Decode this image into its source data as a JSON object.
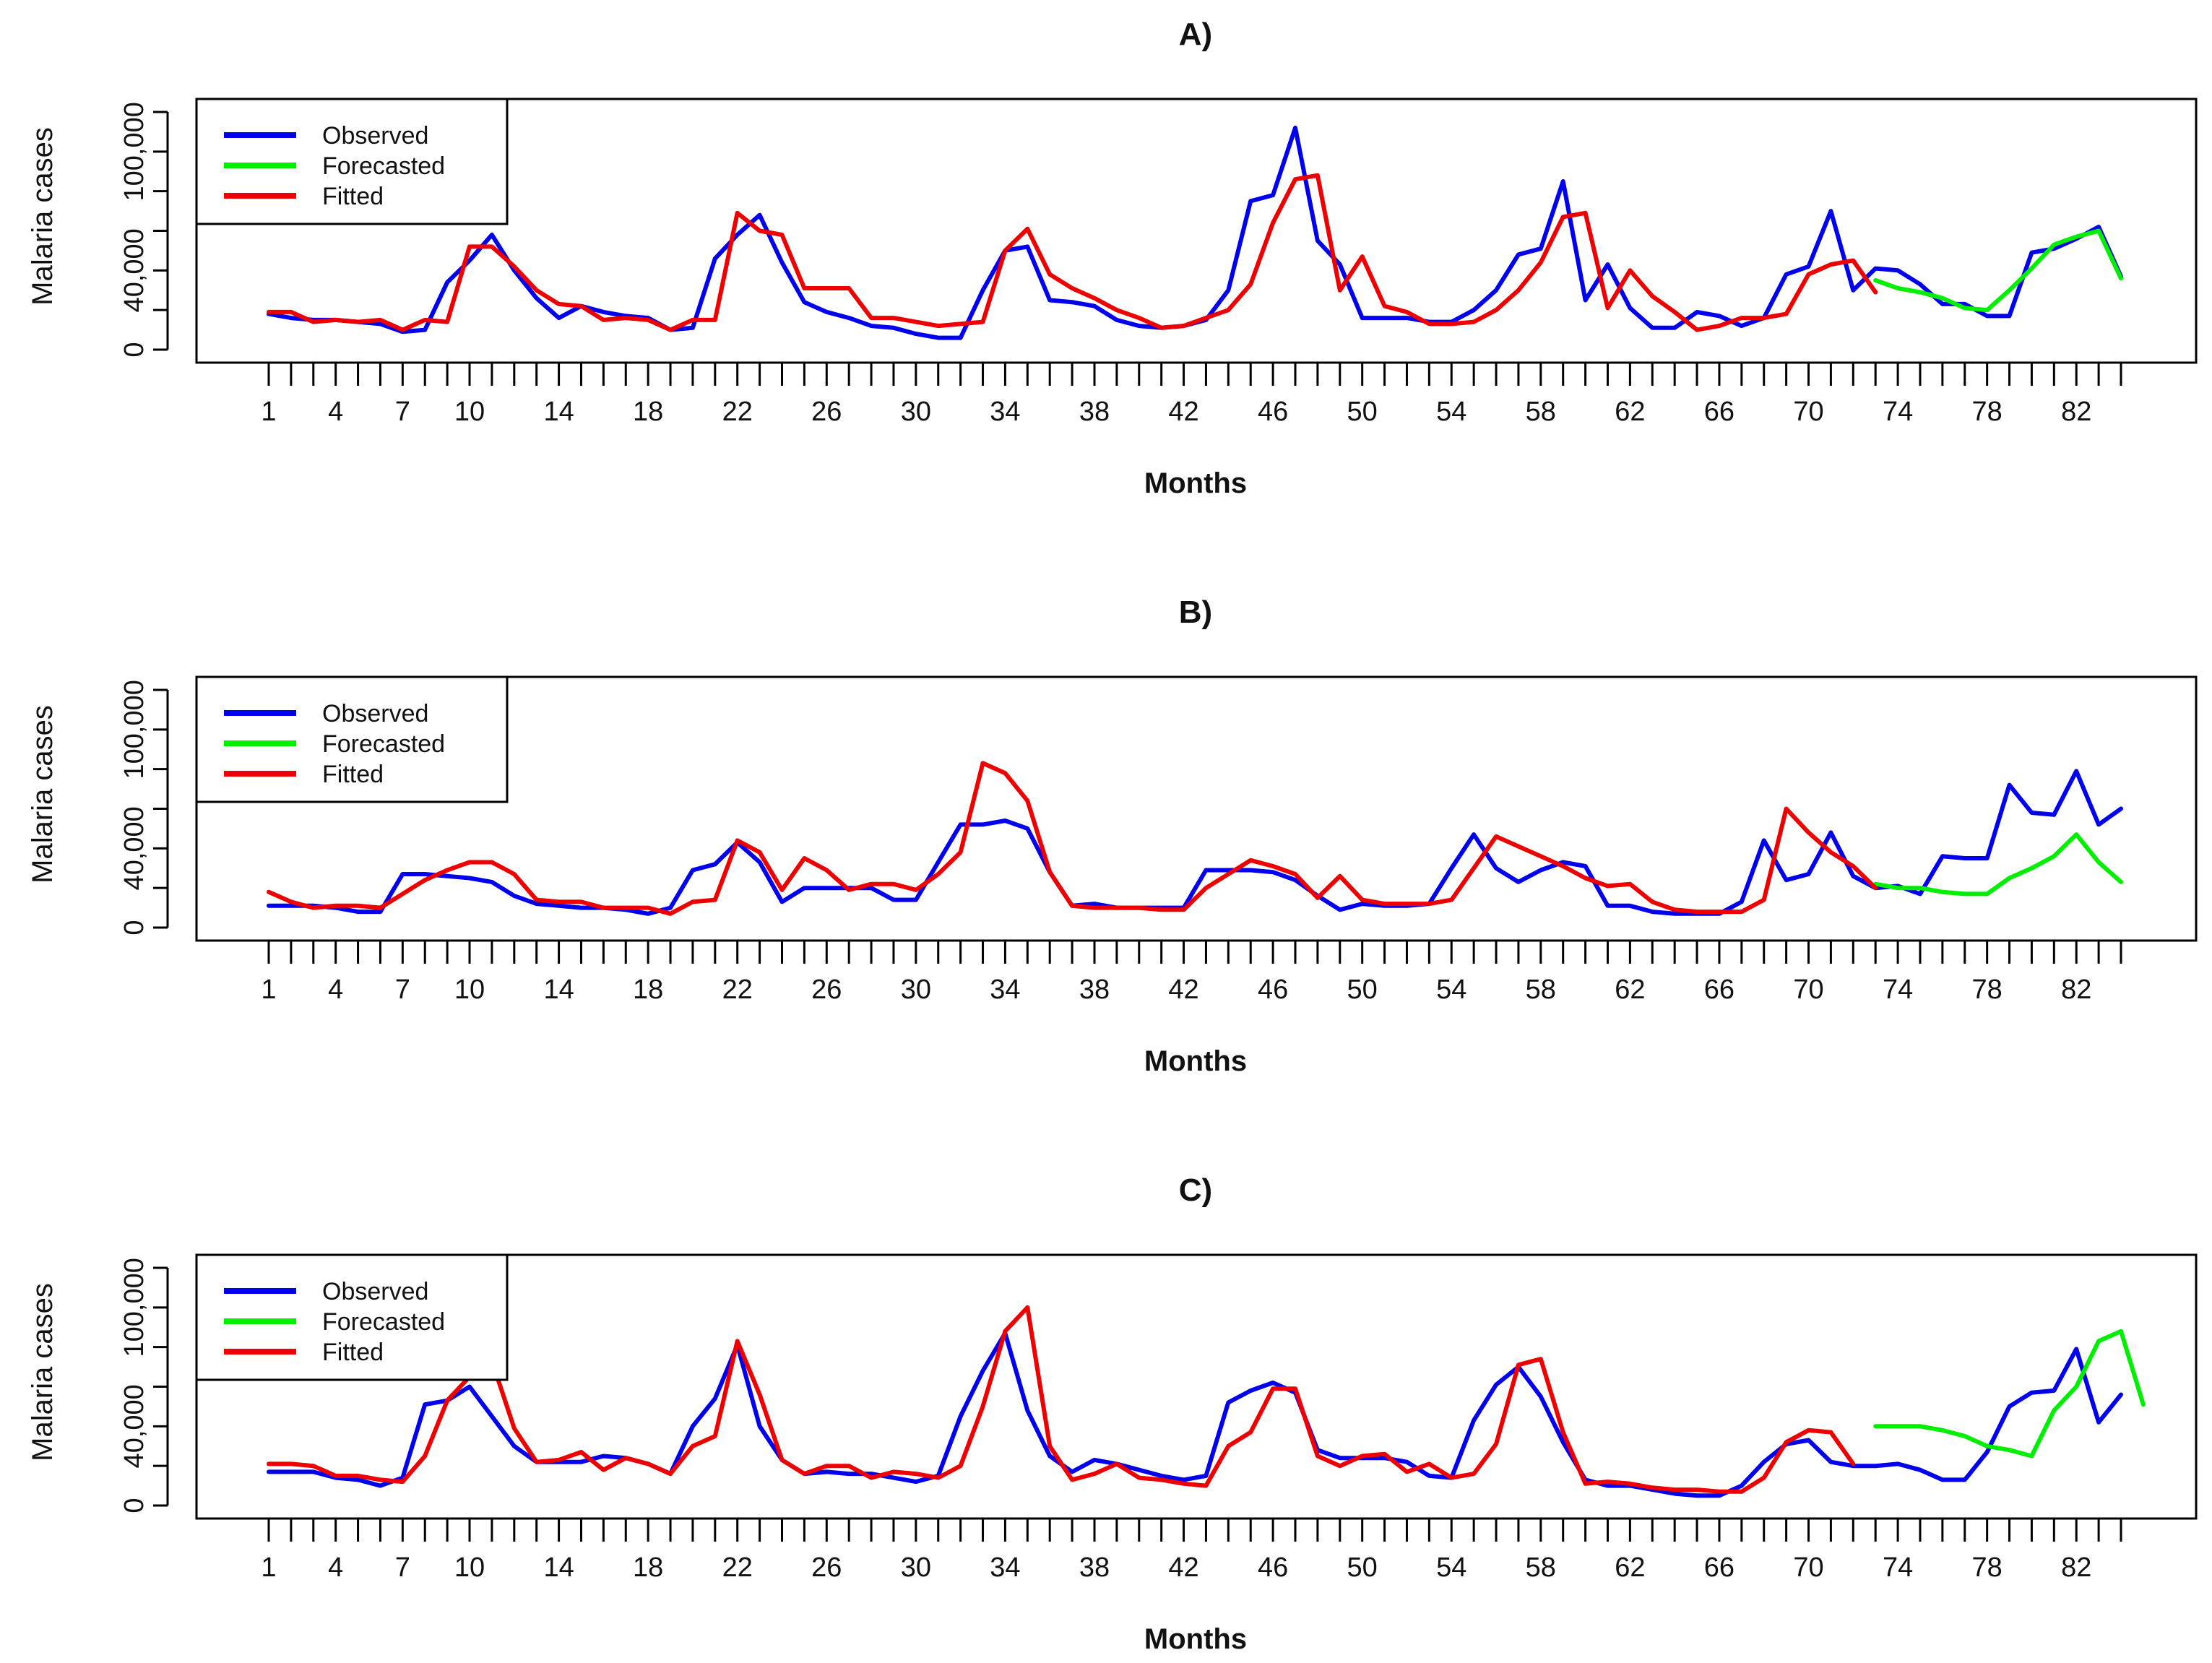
{
  "chart_data": [
    {
      "type": "line",
      "title": "A)",
      "xlabel": "Months",
      "ylabel": "Malaria cases",
      "xlim": [
        1,
        84
      ],
      "ylim": [
        0,
        120000
      ],
      "x_tick_labels": [
        "1",
        "4",
        "7",
        "10",
        "14",
        "18",
        "22",
        "26",
        "30",
        "34",
        "38",
        "42",
        "46",
        "50",
        "54",
        "58",
        "62",
        "66",
        "70",
        "74",
        "78",
        "82"
      ],
      "y_tick_labels": [
        "0",
        "40,000",
        "100,000"
      ],
      "legend": [
        "Observed",
        "Forecasted",
        "Fitted"
      ],
      "legend_position": "top-left",
      "series": [
        {
          "name": "Observed",
          "color": "#0000ee",
          "x_start": 1,
          "values": [
            18000,
            16000,
            15000,
            15000,
            14000,
            13000,
            9000,
            10000,
            34000,
            45000,
            58000,
            40000,
            26000,
            16000,
            22000,
            19000,
            17000,
            16000,
            10000,
            11000,
            46000,
            58000,
            68000,
            44000,
            24000,
            19000,
            16000,
            12000,
            11000,
            8000,
            6000,
            6000,
            30000,
            50000,
            52000,
            25000,
            24000,
            22000,
            15000,
            12000,
            11000,
            12000,
            15000,
            30000,
            75000,
            78000,
            112000,
            55000,
            43000,
            16000,
            16000,
            16000,
            14000,
            14000,
            20000,
            30000,
            48000,
            51000,
            85000,
            25000,
            43000,
            21000,
            11000,
            11000,
            19000,
            17000,
            12000,
            16000,
            38000,
            42000,
            70000,
            30000,
            41000,
            40000,
            33000,
            23000,
            23000,
            17000,
            17000,
            49000,
            51000,
            56000,
            62000,
            37000
          ]
        },
        {
          "name": "Forecasted",
          "color": "#00ee00",
          "x_start": 73,
          "values": [
            35000,
            31000,
            29000,
            26000,
            21000,
            20000,
            30000,
            41000,
            53000,
            57000,
            60000,
            36000
          ]
        },
        {
          "name": "Fitted",
          "color": "#ee0000",
          "x_start": 1,
          "values": [
            19000,
            19000,
            14000,
            15000,
            14000,
            15000,
            10000,
            15000,
            14000,
            52000,
            52000,
            42000,
            30000,
            23000,
            22000,
            15000,
            16000,
            15000,
            10000,
            15000,
            15000,
            69000,
            60000,
            58000,
            31000,
            31000,
            31000,
            16000,
            16000,
            14000,
            12000,
            13000,
            14000,
            50000,
            61000,
            38000,
            31000,
            26000,
            20000,
            16000,
            11000,
            12000,
            16000,
            20000,
            33000,
            64000,
            86000,
            88000,
            30000,
            47000,
            22000,
            19000,
            13000,
            13000,
            14000,
            20000,
            30000,
            44000,
            67000,
            69000,
            21000,
            40000,
            27000,
            19000,
            10000,
            12000,
            16000,
            16000,
            18000,
            38000,
            43000,
            45000,
            29000
          ]
        }
      ]
    },
    {
      "type": "line",
      "title": "B)",
      "xlabel": "Months",
      "ylabel": "Malaria cases",
      "xlim": [
        1,
        84
      ],
      "ylim": [
        0,
        120000
      ],
      "x_tick_labels": [
        "1",
        "4",
        "7",
        "10",
        "14",
        "18",
        "22",
        "26",
        "30",
        "34",
        "38",
        "42",
        "46",
        "50",
        "54",
        "58",
        "62",
        "66",
        "70",
        "74",
        "78",
        "82"
      ],
      "y_tick_labels": [
        "0",
        "40,000",
        "100,000"
      ],
      "legend": [
        "Observed",
        "Forecasted",
        "Fitted"
      ],
      "legend_position": "top-left",
      "series": [
        {
          "name": "Observed",
          "color": "#0000ee",
          "x_start": 1,
          "values": [
            11000,
            11000,
            11000,
            10000,
            8000,
            8000,
            27000,
            27000,
            26000,
            25000,
            23000,
            16000,
            12000,
            11000,
            10000,
            10000,
            9000,
            7000,
            10000,
            29000,
            32000,
            43000,
            33000,
            13000,
            20000,
            20000,
            20000,
            20000,
            14000,
            14000,
            33000,
            52000,
            52000,
            54000,
            50000,
            28000,
            11000,
            12000,
            10000,
            10000,
            10000,
            10000,
            29000,
            29000,
            29000,
            28000,
            24000,
            16000,
            9000,
            12000,
            11000,
            11000,
            12000,
            30000,
            47000,
            30000,
            23000,
            29000,
            33000,
            31000,
            11000,
            11000,
            8000,
            7000,
            7000,
            7000,
            13000,
            44000,
            24000,
            27000,
            48000,
            26000,
            20000,
            21000,
            17000,
            36000,
            35000,
            35000,
            72000,
            58000,
            57000,
            79000,
            52000,
            60000
          ]
        },
        {
          "name": "Forecasted",
          "color": "#00ee00",
          "x_start": 73,
          "values": [
            22000,
            20000,
            20000,
            18000,
            17000,
            17000,
            25000,
            30000,
            36000,
            47000,
            33000,
            23000
          ]
        },
        {
          "name": "Fitted",
          "color": "#ee0000",
          "x_start": 1,
          "values": [
            18000,
            13000,
            10000,
            11000,
            11000,
            10000,
            17000,
            24000,
            29000,
            33000,
            33000,
            27000,
            14000,
            13000,
            13000,
            10000,
            10000,
            10000,
            7000,
            13000,
            14000,
            44000,
            38000,
            19000,
            35000,
            29000,
            19000,
            22000,
            22000,
            19000,
            27000,
            38000,
            83000,
            78000,
            64000,
            28000,
            11000,
            10000,
            10000,
            10000,
            9000,
            9000,
            20000,
            27000,
            34000,
            31000,
            27000,
            15000,
            26000,
            14000,
            12000,
            12000,
            12000,
            14000,
            30000,
            46000,
            41000,
            36000,
            31000,
            25000,
            21000,
            22000,
            13000,
            9000,
            8000,
            8000,
            8000,
            14000,
            60000,
            48000,
            38000,
            31000,
            20000
          ]
        }
      ]
    },
    {
      "type": "line",
      "title": "C)",
      "xlabel": "Months",
      "ylabel": "Malaria cases",
      "xlim": [
        1,
        84
      ],
      "ylim": [
        0,
        120000
      ],
      "x_tick_labels": [
        "1",
        "4",
        "7",
        "10",
        "14",
        "18",
        "22",
        "26",
        "30",
        "34",
        "38",
        "42",
        "46",
        "50",
        "54",
        "58",
        "62",
        "66",
        "70",
        "74",
        "78",
        "82"
      ],
      "y_tick_labels": [
        "0",
        "40,000",
        "100,000"
      ],
      "legend": [
        "Observed",
        "Forecasted",
        "Fitted"
      ],
      "legend_position": "top-left",
      "series": [
        {
          "name": "Observed",
          "color": "#0000ee",
          "x_start": 1,
          "values": [
            17000,
            17000,
            17000,
            14000,
            13000,
            10000,
            14000,
            51000,
            53000,
            60000,
            45000,
            30000,
            22000,
            22000,
            22000,
            25000,
            24000,
            21000,
            16000,
            40000,
            54000,
            81000,
            40000,
            23000,
            16000,
            17000,
            16000,
            16000,
            14000,
            12000,
            15000,
            45000,
            68000,
            87000,
            48000,
            25000,
            17000,
            23000,
            21000,
            18000,
            15000,
            13000,
            15000,
            52000,
            58000,
            62000,
            57000,
            28000,
            24000,
            24000,
            24000,
            22000,
            15000,
            14000,
            43000,
            61000,
            70000,
            55000,
            32000,
            13000,
            10000,
            10000,
            8000,
            6000,
            5000,
            5000,
            10000,
            22000,
            31000,
            33000,
            22000,
            20000,
            20000,
            21000,
            18000,
            13000,
            13000,
            27000,
            50000,
            57000,
            58000,
            79000,
            42000,
            56000
          ]
        },
        {
          "name": "Forecasted",
          "color": "#00ee00",
          "x_start": 73,
          "values": [
            40000,
            40000,
            40000,
            38000,
            35000,
            30000,
            28000,
            25000,
            48000,
            60000,
            83000,
            88000,
            51000
          ]
        },
        {
          "name": "Fitted",
          "color": "#ee0000",
          "x_start": 1,
          "values": [
            21000,
            21000,
            20000,
            15000,
            15000,
            13000,
            12000,
            25000,
            53000,
            65000,
            73000,
            39000,
            22000,
            23000,
            27000,
            18000,
            24000,
            21000,
            16000,
            30000,
            35000,
            83000,
            56000,
            23000,
            16000,
            20000,
            20000,
            14000,
            17000,
            16000,
            14000,
            20000,
            50000,
            88000,
            100000,
            30000,
            13000,
            16000,
            21000,
            14000,
            13000,
            11000,
            10000,
            30000,
            37000,
            59000,
            59000,
            25000,
            20000,
            25000,
            26000,
            17000,
            21000,
            14000,
            16000,
            31000,
            71000,
            74000,
            37000,
            11000,
            12000,
            11000,
            9000,
            8000,
            8000,
            7000,
            7000,
            14000,
            32000,
            38000,
            37000,
            21000
          ]
        }
      ]
    }
  ]
}
